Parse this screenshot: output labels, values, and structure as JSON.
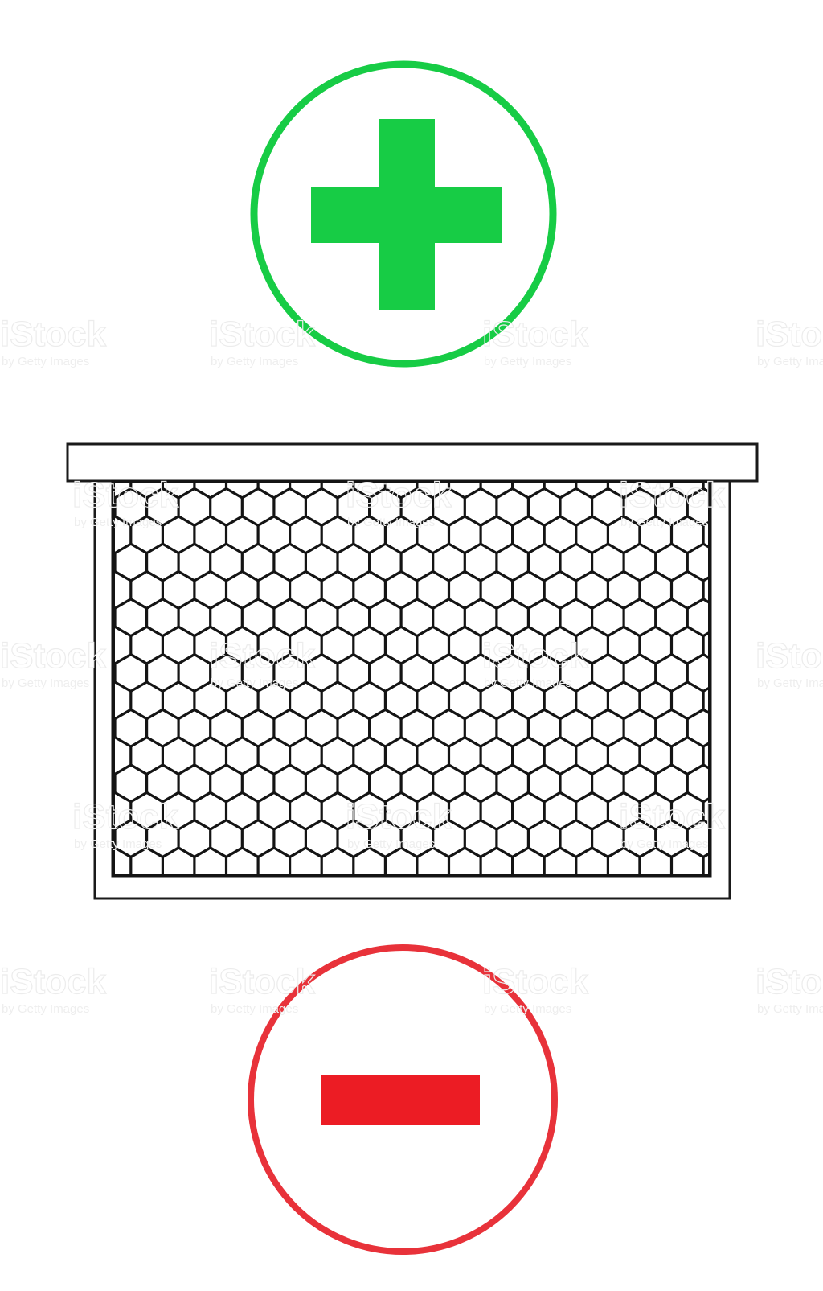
{
  "add_control": {
    "icon": "plus-circle-icon",
    "color": "#17cc45"
  },
  "remove_control": {
    "icon": "minus-circle-icon",
    "color": "#e8323a",
    "bar_color": "#ec1c24"
  },
  "illustration": {
    "icon": "beehive-frame-icon",
    "stroke_color": "#1a1a1a"
  },
  "watermark": {
    "brand": "iStock",
    "byline": "by Getty Images"
  }
}
